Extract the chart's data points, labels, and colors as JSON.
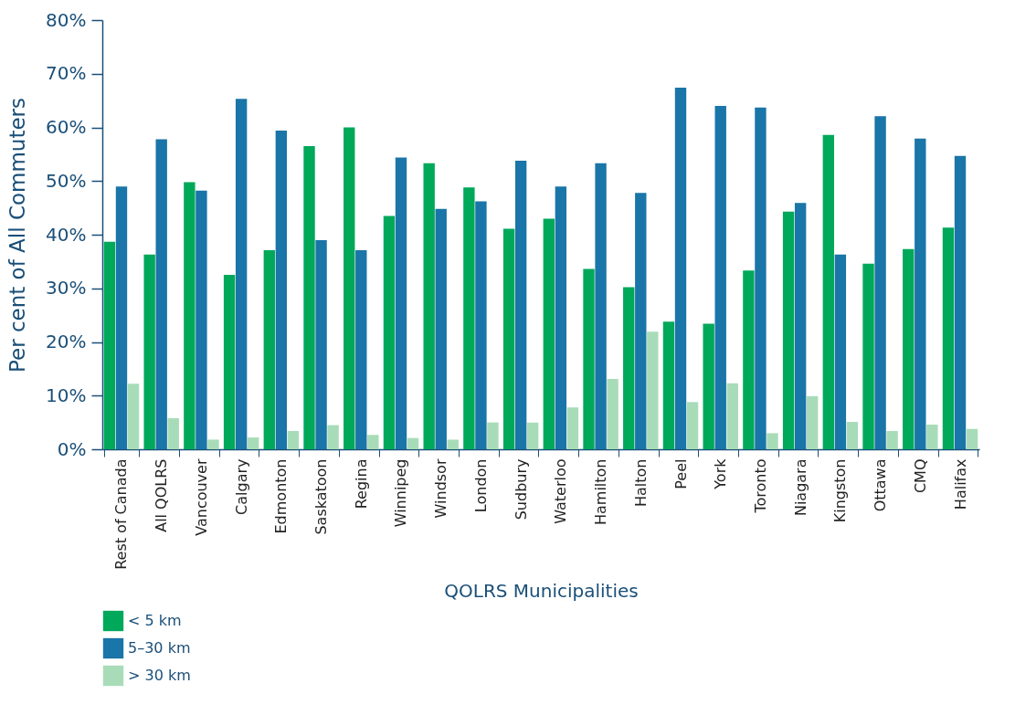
{
  "chart_data": {
    "type": "bar",
    "xlabel": "QOLRS Municipalities",
    "ylabel": "Per cent of All Commuters",
    "categories": [
      "Rest of Canada",
      "All QOLRS",
      "Vancouver",
      "Calgary",
      "Edmonton",
      "Saskatoon",
      "Regina",
      "Winnipeg",
      "Windsor",
      "London",
      "Sudbury",
      "Waterloo",
      "Hamilton",
      "Halton",
      "Peel",
      "York",
      "Toronto",
      "Niagara",
      "Kingston",
      "Ottawa",
      "CMQ",
      "Halifax"
    ],
    "series": [
      {
        "name": "< 5 km",
        "color": "#00a85a",
        "values": [
          38.7,
          36.3,
          49.8,
          32.5,
          37.1,
          56.5,
          60,
          43.5,
          53.3,
          48.8,
          41.1,
          43,
          33.6,
          30.2,
          23.8,
          23.4,
          33.3,
          44.3,
          58.6,
          34.6,
          37.3,
          41.3
        ]
      },
      {
        "name": "5–30 km",
        "color": "#1a75a8",
        "values": [
          49,
          57.8,
          48.2,
          65.3,
          59.4,
          39,
          37.1,
          54.4,
          44.8,
          46.2,
          53.8,
          49,
          53.3,
          47.8,
          67.4,
          64,
          63.7,
          45.9,
          36.3,
          62.1,
          57.9,
          54.7
        ]
      },
      {
        "name": "> 30 km",
        "color": "#a8dcb8",
        "values": [
          12.2,
          5.8,
          1.8,
          2.2,
          3.4,
          4.5,
          2.7,
          2.1,
          1.8,
          5,
          5,
          7.8,
          13.1,
          21.9,
          8.8,
          12.3,
          3,
          9.9,
          5.1,
          3.4,
          4.6,
          3.8
        ]
      }
    ],
    "ylim": [
      0,
      80
    ],
    "yticks": [
      {
        "value": 0,
        "label": "0%"
      },
      {
        "value": 10,
        "label": "10%"
      },
      {
        "value": 20,
        "label": "20%"
      },
      {
        "value": 30,
        "label": "30%"
      },
      {
        "value": 40,
        "label": "40%"
      },
      {
        "value": 50,
        "label": "50%"
      },
      {
        "value": 60,
        "label": "60%"
      },
      {
        "value": 70,
        "label": "70%"
      },
      {
        "value": 80,
        "label": "80%"
      }
    ],
    "grid": false,
    "legend": "bottom"
  }
}
